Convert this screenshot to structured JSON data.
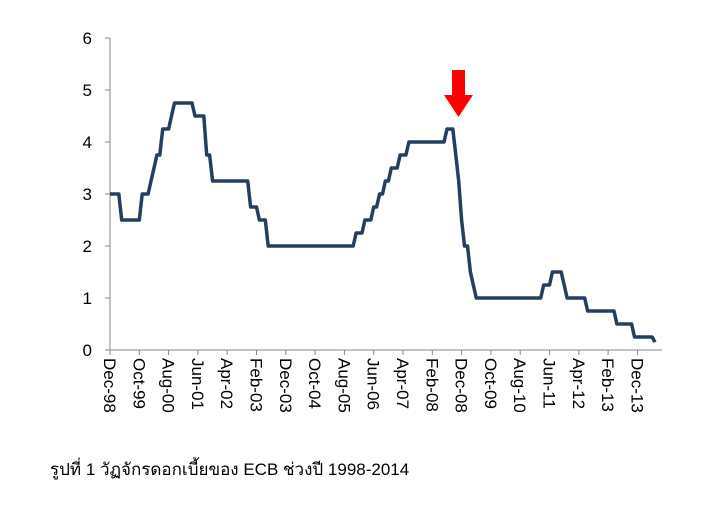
{
  "chart_data": {
    "type": "line",
    "caption": "รูปที่ 1 วัฏจักรดอกเบี้ยของ ECB ช่วงปี 1998-2014",
    "x": [
      "1998-12",
      "1999-03",
      "1999-04",
      "1999-10",
      "1999-11",
      "2000-01",
      "2000-02",
      "2000-03",
      "2000-04",
      "2000-05",
      "2000-06",
      "2000-08",
      "2000-09",
      "2000-10",
      "2001-04",
      "2001-05",
      "2001-08",
      "2001-09",
      "2001-10",
      "2001-11",
      "2002-11",
      "2002-12",
      "2003-02",
      "2003-03",
      "2003-05",
      "2003-06",
      "2005-11",
      "2005-12",
      "2006-02",
      "2006-03",
      "2006-05",
      "2006-06",
      "2006-07",
      "2006-08",
      "2006-09",
      "2006-10",
      "2006-11",
      "2006-12",
      "2007-02",
      "2007-03",
      "2007-05",
      "2007-06",
      "2008-06",
      "2008-07",
      "2008-09",
      "2008-10",
      "2008-11",
      "2008-12",
      "2009-01",
      "2009-02",
      "2009-03",
      "2009-04",
      "2009-05",
      "2011-03",
      "2011-04",
      "2011-06",
      "2011-07",
      "2011-10",
      "2011-11",
      "2011-12",
      "2012-06",
      "2012-07",
      "2013-04",
      "2013-05",
      "2013-10",
      "2013-11",
      "2014-05",
      "2014-06"
    ],
    "series": [
      {
        "color": "#243f60",
        "values": [
          3,
          3,
          2.5,
          2.5,
          3,
          3,
          3.25,
          3.5,
          3.75,
          3.75,
          4.25,
          4.25,
          4.5,
          4.75,
          4.75,
          4.5,
          4.5,
          3.75,
          3.75,
          3.25,
          3.25,
          2.75,
          2.75,
          2.5,
          2.5,
          2,
          2,
          2.25,
          2.25,
          2.5,
          2.5,
          2.75,
          2.75,
          3,
          3,
          3.25,
          3.25,
          3.5,
          3.5,
          3.75,
          3.75,
          4,
          4,
          4.25,
          4.25,
          3.75,
          3.25,
          2.5,
          2,
          2,
          1.5,
          1.25,
          1,
          1,
          1.25,
          1.25,
          1.5,
          1.5,
          1.25,
          1,
          1,
          0.75,
          0.75,
          0.5,
          0.5,
          0.25,
          0.25,
          0.15
        ]
      }
    ],
    "xlim": [
      "1998-12",
      "2014-06"
    ],
    "xticks": [
      {
        "value": "1998-12",
        "label": "Dec-98"
      },
      {
        "value": "1999-10",
        "label": "Oct-99"
      },
      {
        "value": "2000-08",
        "label": "Aug-00"
      },
      {
        "value": "2001-06",
        "label": "Jun-01"
      },
      {
        "value": "2002-04",
        "label": "Apr-02"
      },
      {
        "value": "2003-02",
        "label": "Feb-03"
      },
      {
        "value": "2003-12",
        "label": "Dec-03"
      },
      {
        "value": "2004-10",
        "label": "Oct-04"
      },
      {
        "value": "2005-08",
        "label": "Aug-05"
      },
      {
        "value": "2006-06",
        "label": "Jun-06"
      },
      {
        "value": "2007-04",
        "label": "Apr-07"
      },
      {
        "value": "2008-02",
        "label": "Feb-08"
      },
      {
        "value": "2008-12",
        "label": "Dec-08"
      },
      {
        "value": "2009-10",
        "label": "Oct-09"
      },
      {
        "value": "2010-08",
        "label": "Aug-10"
      },
      {
        "value": "2011-06",
        "label": "Jun-11"
      },
      {
        "value": "2012-04",
        "label": "Apr-12"
      },
      {
        "value": "2013-02",
        "label": "Feb-13"
      },
      {
        "value": "2013-12",
        "label": "Dec-13"
      }
    ],
    "ylim": [
      0,
      6
    ],
    "yticks": [
      0,
      1,
      2,
      3,
      4,
      5,
      6
    ],
    "grid": false
  }
}
